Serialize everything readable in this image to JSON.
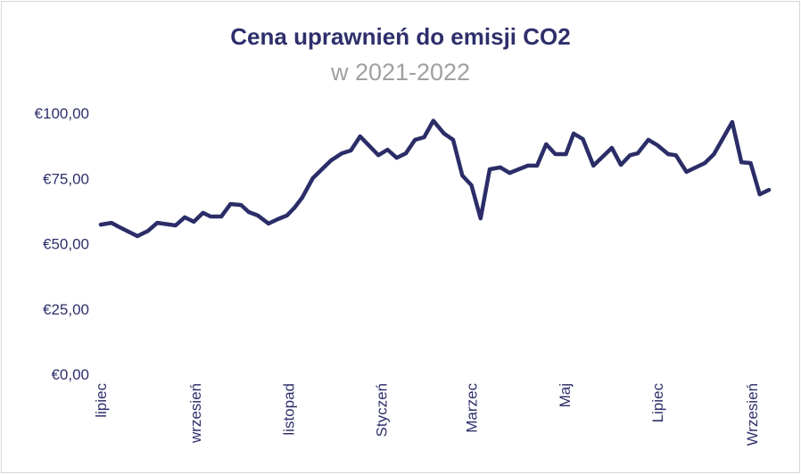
{
  "chart_data": {
    "type": "line",
    "title": "Cena uprawnień do emisji CO2",
    "subtitle": "w 2021-2022",
    "xlabel": "",
    "ylabel": "",
    "ylim": [
      0,
      100
    ],
    "y_ticks": [
      "€0,00",
      "€25,00",
      "€50,00",
      "€75,00",
      "€100,00"
    ],
    "y_tick_values": [
      0,
      25,
      50,
      75,
      100
    ],
    "x_ticks": [
      "lipiec",
      "wrzesień",
      "listopad",
      "Styczeń",
      "Marzec",
      "Maj",
      "Lipiec",
      "Wrzesień"
    ],
    "x_tick_dates": [
      "2021-07-01",
      "2021-09-01",
      "2021-11-01",
      "2022-01-01",
      "2022-03-01",
      "2022-05-01",
      "2022-07-01",
      "2022-09-01"
    ],
    "grid": false,
    "line_color": "#2b2d68",
    "series": [
      {
        "x": [
          "2021-07-01",
          "2021-07-08",
          "2021-07-12",
          "2021-07-25",
          "2021-08-01",
          "2021-08-07",
          "2021-08-19",
          "2021-08-25",
          "2021-08-31",
          "2021-09-06",
          "2021-09-11",
          "2021-09-18",
          "2021-09-24",
          "2021-10-01",
          "2021-10-06",
          "2021-10-12",
          "2021-10-19",
          "2021-10-25",
          "2021-10-31",
          "2021-11-05",
          "2021-11-10",
          "2021-11-17",
          "2021-11-23",
          "2021-11-29",
          "2021-12-06",
          "2021-12-12",
          "2021-12-18",
          "2021-12-23",
          "2021-12-30",
          "2022-01-05",
          "2022-01-11",
          "2022-01-17",
          "2022-01-23",
          "2022-01-29",
          "2022-02-04",
          "2022-02-11",
          "2022-02-17",
          "2022-02-23",
          "2022-03-01",
          "2022-03-07",
          "2022-03-13",
          "2022-03-20",
          "2022-03-26",
          "2022-04-01",
          "2022-04-07",
          "2022-04-13",
          "2022-04-19",
          "2022-04-25",
          "2022-05-02",
          "2022-05-07",
          "2022-05-13",
          "2022-05-20",
          "2022-06-01",
          "2022-06-07",
          "2022-06-13",
          "2022-06-18",
          "2022-06-25",
          "2022-07-01",
          "2022-07-08",
          "2022-07-13",
          "2022-07-20",
          "2022-08-01",
          "2022-08-07",
          "2022-08-19",
          "2022-08-25",
          "2022-08-31",
          "2022-09-06",
          "2022-09-12"
        ],
        "y": [
          57.3,
          58.0,
          56.7,
          52.9,
          54.9,
          58.0,
          57.0,
          60.1,
          58.4,
          61.8,
          60.4,
          60.4,
          65.2,
          64.8,
          62.1,
          60.8,
          57.7,
          59.4,
          60.8,
          63.8,
          67.6,
          75.1,
          78.5,
          81.9,
          84.6,
          85.7,
          91.1,
          88.1,
          83.9,
          86.0,
          82.9,
          84.6,
          89.8,
          90.8,
          97.1,
          92.2,
          89.8,
          76.1,
          72.4,
          59.7,
          78.5,
          79.2,
          77.1,
          78.5,
          79.9,
          79.9,
          88.1,
          84.3,
          84.3,
          92.2,
          90.1,
          79.9,
          86.7,
          80.2,
          83.9,
          84.6,
          89.8,
          87.7,
          84.3,
          83.9,
          77.5,
          80.9,
          84.3,
          96.6,
          81.2,
          80.9,
          68.9,
          70.6
        ]
      }
    ]
  }
}
